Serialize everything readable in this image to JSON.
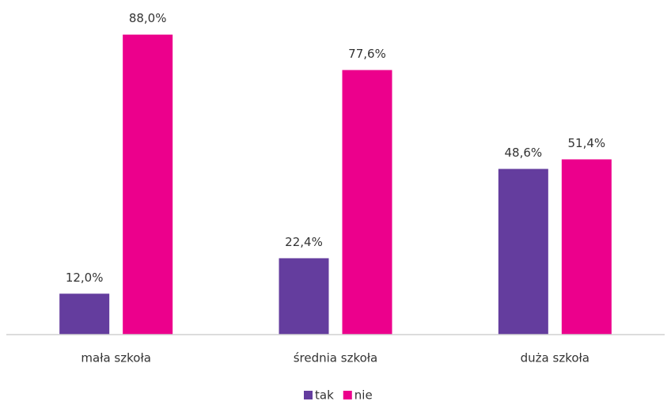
{
  "chart_data": {
    "type": "bar",
    "categories": [
      "mała szkoła",
      "średnia szkoła",
      "duża szkoła"
    ],
    "series": [
      {
        "name": "tak",
        "color": "#643d9e",
        "values": [
          12.0,
          22.4,
          48.6
        ],
        "value_labels": [
          "12,0%",
          "22,4%",
          "48,6%"
        ]
      },
      {
        "name": "nie",
        "color": "#ec008c",
        "values": [
          88.0,
          77.6,
          51.4
        ],
        "value_labels": [
          "88,0%",
          "77,6%",
          "51,4%"
        ]
      }
    ],
    "ylim": [
      0,
      100
    ],
    "legend": "bottom"
  }
}
